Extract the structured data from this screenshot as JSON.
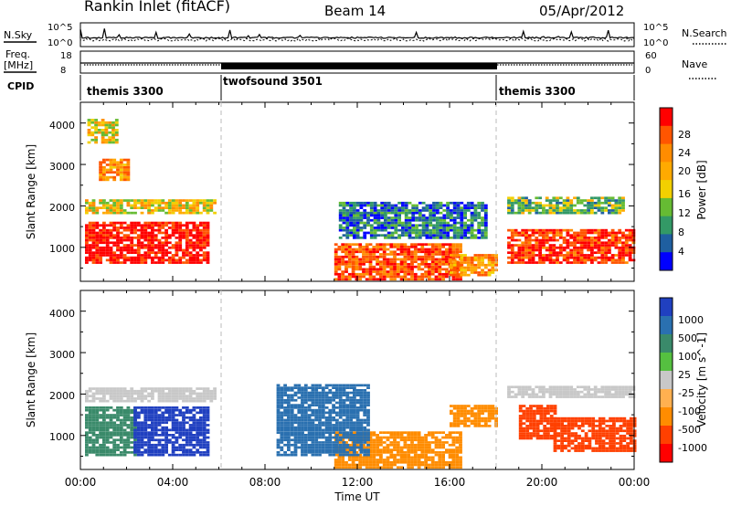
{
  "header": {
    "station": "Rankin Inlet (fitACF)",
    "beam": "Beam 14",
    "date": "05/Apr/2012"
  },
  "panels_top": {
    "nsky_label": "N.Sky",
    "nsky_ticks": [
      "10^5",
      "10^0"
    ],
    "nsearch_label": "N.Search",
    "nsearch_ticks": [
      "10^5",
      "10^0"
    ],
    "freq_label_1": "Freq.",
    "freq_label_2": "[MHz]",
    "freq_ticks": [
      "18",
      "8"
    ],
    "nave_label": "Nave",
    "nave_ticks": [
      "60",
      "0"
    ],
    "cpid_label": "CPID",
    "modes": [
      {
        "name": "themis 3300",
        "start_h": 0,
        "end_h": 6
      },
      {
        "name": "twofsound 3501",
        "start_h": 6,
        "end_h": 18
      },
      {
        "name": "themis 3300",
        "start_h": 18,
        "end_h": 24
      }
    ]
  },
  "axes": {
    "ylabel": "Slant Range [km]",
    "xlabel": "Time UT",
    "xticks": [
      "00:00",
      "04:00",
      "08:00",
      "12:00",
      "16:00",
      "20:00",
      "00:00"
    ],
    "yticks": [
      "1000",
      "2000",
      "3000",
      "4000"
    ]
  },
  "power_bar": {
    "label": "Power [dB]",
    "ticks": [
      "28",
      "24",
      "20",
      "16",
      "12",
      "8",
      "4"
    ],
    "colors": [
      "#ff0000",
      "#ff5500",
      "#ff8c00",
      "#ffaa00",
      "#f2d000",
      "#66bb33",
      "#339966",
      "#1f5fa0",
      "#0000ff"
    ]
  },
  "velocity_bar": {
    "label": "Velocity [m s^-1]",
    "ticks": [
      "1000",
      "500",
      "100",
      "25",
      "-25",
      "-100",
      "-500",
      "-1000"
    ],
    "colors": [
      "#2040c0",
      "#2a70b0",
      "#3a8a6a",
      "#55c040",
      "#c8c8c8",
      "#ffb050",
      "#ff8c00",
      "#ff4000",
      "#ff0000"
    ]
  },
  "chart_data": {
    "type": "heatmap",
    "x_range_hours": [
      0,
      24
    ],
    "y_range_km": [
      180,
      4500
    ],
    "grid": false,
    "mode_change_lines_h": [
      6,
      18
    ],
    "power_regions": [
      {
        "t": [
          0.2,
          5.5
        ],
        "r": [
          600,
          1600
        ],
        "db": 28
      },
      {
        "t": [
          0.2,
          5.8
        ],
        "r": [
          1800,
          2150
        ],
        "db": 16
      },
      {
        "t": [
          0.3,
          1.5
        ],
        "r": [
          3500,
          4100
        ],
        "db": 16
      },
      {
        "t": [
          0.8,
          2.0
        ],
        "r": [
          2600,
          3100
        ],
        "db": 20
      },
      {
        "t": [
          11.0,
          16.5
        ],
        "r": [
          200,
          1100
        ],
        "db": 24
      },
      {
        "t": [
          11.2,
          17.5
        ],
        "r": [
          1200,
          2100
        ],
        "db": 8
      },
      {
        "t": [
          16.0,
          18.0
        ],
        "r": [
          300,
          800
        ],
        "db": 20
      },
      {
        "t": [
          18.5,
          24.0
        ],
        "r": [
          600,
          1400
        ],
        "db": 26
      },
      {
        "t": [
          18.5,
          23.5
        ],
        "r": [
          1800,
          2200
        ],
        "db": 12
      }
    ],
    "velocity_regions": [
      {
        "t": [
          0.2,
          2.3
        ],
        "r": [
          500,
          1700
        ],
        "v": 100
      },
      {
        "t": [
          2.3,
          5.5
        ],
        "r": [
          500,
          1700
        ],
        "v": 1000
      },
      {
        "t": [
          0.2,
          5.8
        ],
        "r": [
          1800,
          2150
        ],
        "v": 0
      },
      {
        "t": [
          11.0,
          16.5
        ],
        "r": [
          200,
          1100
        ],
        "v": -100
      },
      {
        "t": [
          16.0,
          18.0
        ],
        "r": [
          1200,
          1700
        ],
        "v": -100
      },
      {
        "t": [
          19.0,
          20.5
        ],
        "r": [
          900,
          1700
        ],
        "v": -500
      },
      {
        "t": [
          20.5,
          24.0
        ],
        "r": [
          600,
          1400
        ],
        "v": -500
      },
      {
        "t": [
          18.5,
          24.0
        ],
        "r": [
          1900,
          2150
        ],
        "v": 0
      },
      {
        "t": [
          8.5,
          12.5
        ],
        "r": [
          500,
          2200
        ],
        "v": 500
      }
    ]
  }
}
